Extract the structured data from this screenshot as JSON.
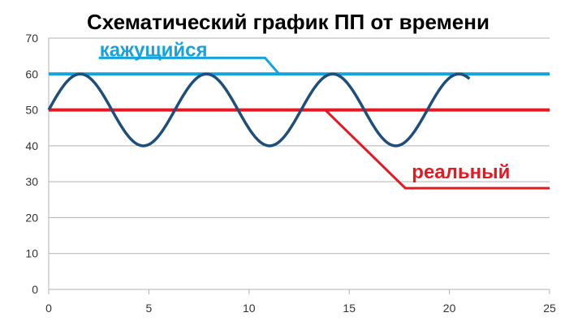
{
  "chart_data": {
    "type": "line",
    "title": "Схематический график ПП от времени",
    "xlim": [
      0,
      25
    ],
    "ylim": [
      0,
      70
    ],
    "x_ticks": [
      0,
      5,
      10,
      15,
      20,
      25
    ],
    "y_ticks": [
      0,
      10,
      20,
      30,
      40,
      50,
      60,
      70
    ],
    "grid": "horizontal",
    "series": [
      {
        "color": "#1f4e79",
        "kind": "sine",
        "mean": 50,
        "amplitude": 10,
        "period": 6.3,
        "x_range": [
          0,
          21
        ]
      },
      {
        "color": "#16a3dd",
        "kind": "constant",
        "value": 60,
        "x_range": [
          0,
          25
        ]
      },
      {
        "color": "#e31a22",
        "kind": "constant",
        "value": 50,
        "x_range": [
          0,
          25
        ]
      }
    ],
    "annotations": [
      {
        "text": "кажущийся",
        "color": "#16a3dd",
        "points": [
          [
            2.5,
            64.5
          ],
          [
            10.8,
            64.5
          ],
          [
            11.5,
            60
          ]
        ]
      },
      {
        "text": "реальный",
        "color": "#e31a22",
        "points": [
          [
            13.8,
            50
          ],
          [
            17.8,
            28.2
          ],
          [
            25,
            28.2
          ]
        ]
      }
    ]
  }
}
